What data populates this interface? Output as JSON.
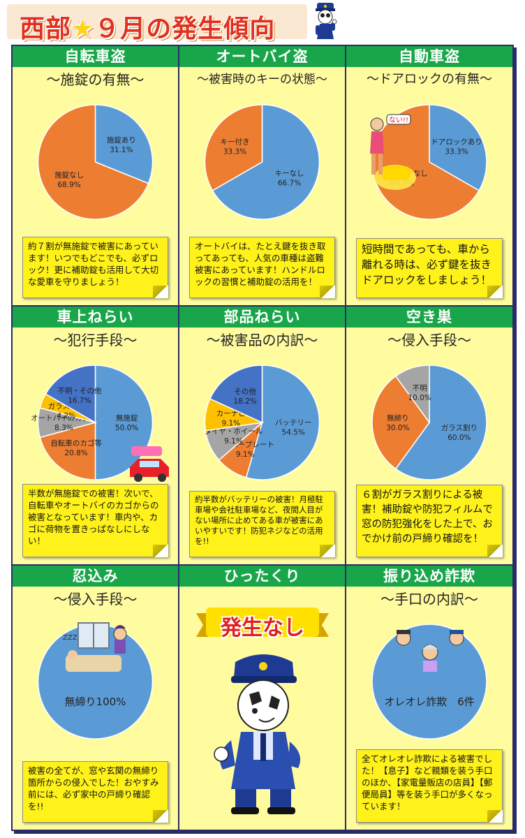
{
  "page": {
    "title_pre": "西部",
    "title_star": "★",
    "title_post": "９月の発生傾向"
  },
  "cells": [
    {
      "header": "自転車盗",
      "subtitle": "～施錠の有無～",
      "chart_data": {
        "type": "pie",
        "slices": [
          {
            "label": "施錠あり",
            "value_text": "31.1%",
            "value": 31.1,
            "color": "#5b9bd5"
          },
          {
            "label": "施錠なし",
            "value_text": "68.9%",
            "value": 68.9,
            "color": "#ed7d31"
          }
        ]
      },
      "note": "約７割が無施錠で被害にあっています！いつでもどこでも、必ずロック！更に補助錠も活用して大切な愛車を守りましょう！",
      "note_size": "normal"
    },
    {
      "header": "オートバイ盗",
      "subtitle": "～被害時のキーの状態～",
      "chart_data": {
        "type": "pie",
        "slices": [
          {
            "label": "キーなし",
            "value_text": "66.7%",
            "value": 66.7,
            "color": "#5b9bd5"
          },
          {
            "label": "キー付き",
            "value_text": "33.3%",
            "value": 33.3,
            "color": "#ed7d31"
          }
        ]
      },
      "note": "オートバイは、たとえ鍵を抜き取ってあっても、人気の車種は盗難被害にあっています！ハンドルロックの習慣と補助錠の活用を！",
      "note_size": "normal"
    },
    {
      "header": "自動車盗",
      "subtitle": "～ドアロックの有無～",
      "chart_data": {
        "type": "pie",
        "slices": [
          {
            "label": "ドアロックあり",
            "value_text": "33.3%",
            "value": 33.3,
            "color": "#5b9bd5"
          },
          {
            "label": "ドアロックなし",
            "value_text": "66.7%",
            "value": 66.7,
            "color": "#ed7d31"
          }
        ]
      },
      "illustration_text": "ない!!",
      "note": "短時間であっても、車から離れる時は、必ず鍵を抜きドアロックをしましょう！",
      "note_size": "large"
    },
    {
      "header": "車上ねらい",
      "subtitle": "～犯行手段～",
      "chart_data": {
        "type": "pie",
        "slices": [
          {
            "label": "無施錠",
            "value_text": "50.0%",
            "value": 50.0,
            "color": "#5b9bd5"
          },
          {
            "label": "自転車のカゴ等",
            "value_text": "20.8%",
            "value": 20.8,
            "color": "#ed7d31"
          },
          {
            "label": "オートバイのカゴ等",
            "value_text": "8.3%",
            "value": 8.3,
            "color": "#a5a5a5"
          },
          {
            "label": "ガラス割り",
            "value_text": "4.2%",
            "value": 4.2,
            "color": "#ffc000"
          },
          {
            "label": "不明・その他",
            "value_text": "16.7%",
            "value": 16.7,
            "color": "#4472c4"
          }
        ]
      },
      "note": "半数が無施錠での被害！次いで、自転車やオートバイのカゴからの被害となっています！車内や、カゴに荷物を置きっぱなしにしない！",
      "note_size": "normal"
    },
    {
      "header": "部品ねらい",
      "subtitle": "～被害品の内訳～",
      "chart_data": {
        "type": "pie",
        "slices": [
          {
            "label": "バッテリー",
            "value_text": "54.5%",
            "value": 54.5,
            "color": "#5b9bd5"
          },
          {
            "label": "ナンバープレート",
            "value_text": "9.1%",
            "value": 9.1,
            "color": "#ed7d31"
          },
          {
            "label": "タイヤ・ホイール",
            "value_text": "9.1%",
            "value": 9.1,
            "color": "#a5a5a5"
          },
          {
            "label": "カーナビ",
            "value_text": "9.1%",
            "value": 9.1,
            "color": "#ffc000"
          },
          {
            "label": "その他",
            "value_text": "18.2%",
            "value": 18.2,
            "color": "#4472c4"
          }
        ]
      },
      "note": "約半数がバッテリーの被害！月極駐車場や会社駐車場など、夜間人目がない場所に止めてある車が被害にあいやすいです！防犯ネジなどの活用を!!",
      "note_size": "small"
    },
    {
      "header": "空き巣",
      "subtitle": "～侵入手段～",
      "chart_data": {
        "type": "pie",
        "slices": [
          {
            "label": "ガラス割り",
            "value_text": "60.0%",
            "value": 60.0,
            "color": "#5b9bd5"
          },
          {
            "label": "無締り",
            "value_text": "30.0%",
            "value": 30.0,
            "color": "#ed7d31"
          },
          {
            "label": "不明",
            "value_text": "10.0%",
            "value": 10.0,
            "color": "#a5a5a5"
          }
        ]
      },
      "note": "６割がガラス割りによる被害！補助錠や防犯フィルムで窓の防犯強化をした上で、おでかけ前の戸締り確認を！",
      "note_size": "large"
    },
    {
      "header": "忍込み",
      "subtitle": "～侵入手段～",
      "chart_data": {
        "type": "pie",
        "slices": [
          {
            "label": "無締り100%",
            "value_text": "",
            "value": 100,
            "color": "#5b9bd5"
          }
        ]
      },
      "illustration_text": "ZZZ",
      "note": "被害の全てが、窓や玄関の無締り箇所からの侵入でした！おやすみ前には、必ず家中の戸締り確認を!!",
      "note_size": "normal"
    },
    {
      "header": "ひったくり",
      "badge": "発生なし"
    },
    {
      "header": "振り込め詐欺",
      "subtitle": "～手口の内訳～",
      "chart_data": {
        "type": "pie",
        "slices": [
          {
            "label": "オレオレ詐欺　6件",
            "value_text": "",
            "value": 100,
            "color": "#5b9bd5"
          }
        ]
      },
      "note": "全てオレオレ詐欺による被害でした！【息子】など親類を装う手口のほか、【家電量販店の店員】【郵便局員】等を装う手口が多くなっています！",
      "note_size": "normal"
    }
  ]
}
